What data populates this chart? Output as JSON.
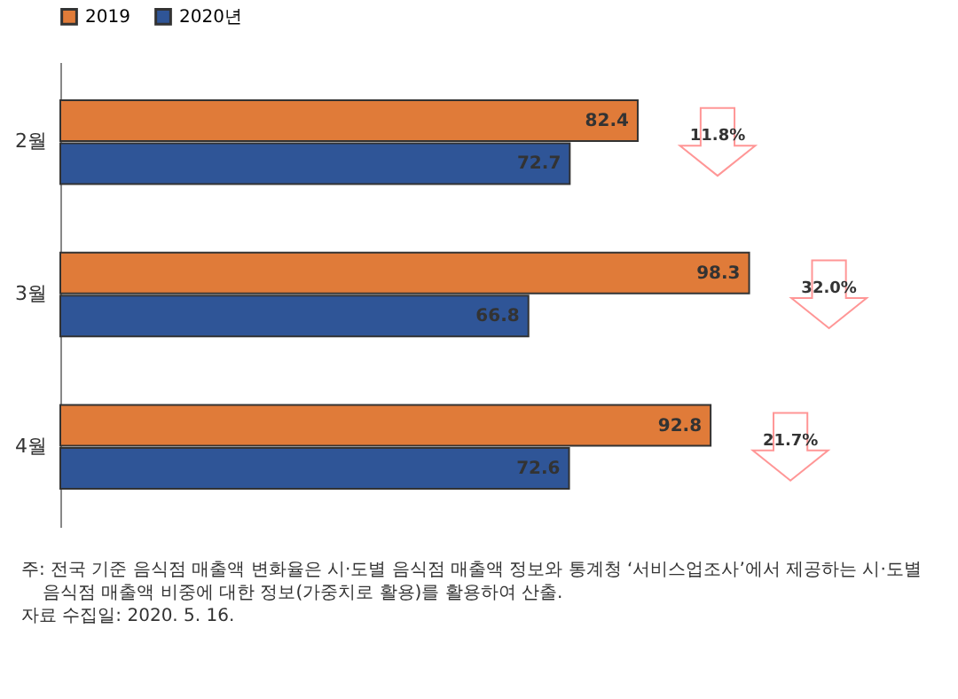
{
  "chart_data": {
    "type": "bar",
    "orientation": "horizontal",
    "categories": [
      "2월",
      "3월",
      "4월"
    ],
    "series": [
      {
        "name": "2019",
        "color": "#e07b39",
        "values": [
          82.4,
          98.3,
          92.8
        ]
      },
      {
        "name": "2020년",
        "color": "#2f5597",
        "values": [
          72.7,
          66.8,
          72.6
        ]
      }
    ],
    "data_labels": true,
    "legend": "top",
    "annotations": [
      "11.8%",
      "32.0%",
      "21.7%",
      "주: 전국 기준 음식점 매출액 변화율은 시·도별 음식점 매출액 정보와 통계청 ‘서비스업조사’에서 제공하는 시·도별 음식점 매출액 비중에 대한 정보(가중치로 활용)를 활용하여 산출.",
      "자료 수집일: 2020. 5. 16."
    ]
  }
}
